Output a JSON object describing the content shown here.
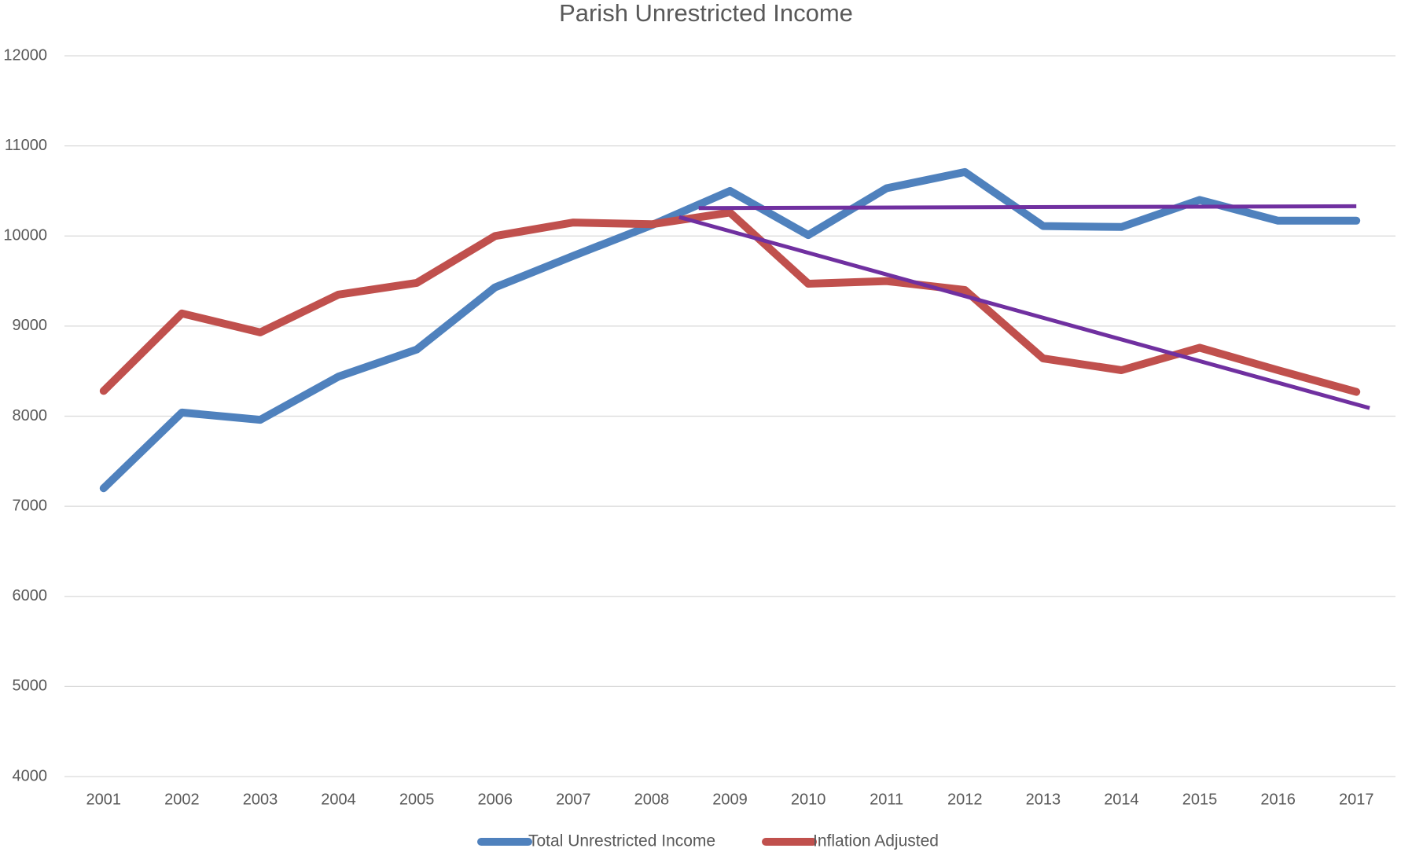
{
  "chart_data": {
    "type": "line",
    "title": "Parish Unrestricted Income",
    "categories": [
      "2001",
      "2002",
      "2003",
      "2004",
      "2005",
      "2006",
      "2007",
      "2008",
      "2009",
      "2010",
      "2011",
      "2012",
      "2013",
      "2014",
      "2015",
      "2016",
      "2017"
    ],
    "series": [
      {
        "name": "Total Unrestricted Income",
        "color": "#4f81bd",
        "values": [
          7200,
          8040,
          7960,
          8440,
          8740,
          9430,
          9780,
          10120,
          10500,
          10010,
          10530,
          10710,
          10110,
          10100,
          10400,
          10170,
          10170
        ]
      },
      {
        "name": "Inflation Adjusted",
        "color": "#c0504d",
        "values": [
          8280,
          9140,
          8930,
          9350,
          9480,
          10000,
          10150,
          10130,
          10260,
          9470,
          9500,
          9400,
          8640,
          8510,
          8760,
          8510,
          8270
        ]
      }
    ],
    "trendlines": [
      {
        "color": "#7030a0",
        "x": [
          2008.6,
          2017
        ],
        "values": [
          10310,
          10330
        ]
      },
      {
        "color": "#7030a0",
        "x": [
          2008.35,
          2017.17
        ],
        "values": [
          10210,
          8090
        ]
      }
    ],
    "ylim": [
      4000,
      12000
    ],
    "yticks": [
      4000,
      5000,
      6000,
      7000,
      8000,
      9000,
      10000,
      11000,
      12000
    ],
    "grid": true,
    "legend": "bottom"
  }
}
